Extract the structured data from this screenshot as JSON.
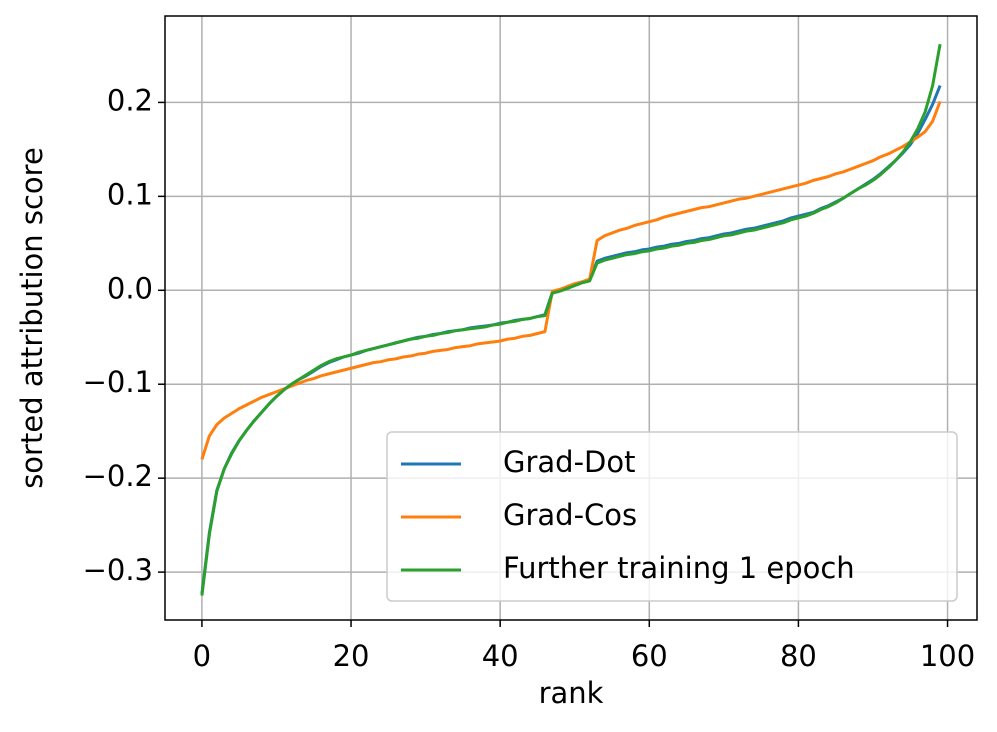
{
  "chart_data": {
    "type": "line",
    "xlabel": "rank",
    "ylabel": "sorted attribution score",
    "x": [
      0,
      1,
      2,
      3,
      4,
      5,
      6,
      7,
      8,
      9,
      10,
      11,
      12,
      13,
      14,
      15,
      16,
      17,
      18,
      19,
      20,
      21,
      22,
      23,
      24,
      25,
      26,
      27,
      28,
      29,
      30,
      31,
      32,
      33,
      34,
      35,
      36,
      37,
      38,
      39,
      40,
      41,
      42,
      43,
      44,
      45,
      46,
      47,
      48,
      49,
      50,
      51,
      52,
      53,
      54,
      55,
      56,
      57,
      58,
      59,
      60,
      61,
      62,
      63,
      64,
      65,
      66,
      67,
      68,
      69,
      70,
      71,
      72,
      73,
      74,
      75,
      76,
      77,
      78,
      79,
      80,
      81,
      82,
      83,
      84,
      85,
      86,
      87,
      88,
      89,
      90,
      91,
      92,
      93,
      94,
      95,
      96,
      97,
      98,
      99
    ],
    "series": [
      {
        "name": "Grad-Dot",
        "color": "#1f77b4",
        "values": [
          -0.323,
          -0.258,
          -0.213,
          -0.19,
          -0.173,
          -0.16,
          -0.149,
          -0.139,
          -0.13,
          -0.121,
          -0.113,
          -0.106,
          -0.1,
          -0.095,
          -0.091,
          -0.086,
          -0.081,
          -0.077,
          -0.074,
          -0.071,
          -0.069,
          -0.067,
          -0.064,
          -0.062,
          -0.06,
          -0.058,
          -0.056,
          -0.054,
          -0.052,
          -0.05,
          -0.049,
          -0.047,
          -0.046,
          -0.044,
          -0.043,
          -0.042,
          -0.04,
          -0.039,
          -0.038,
          -0.037,
          -0.035,
          -0.034,
          -0.032,
          -0.031,
          -0.03,
          -0.028,
          -0.026,
          -0.002,
          0.0,
          0.003,
          0.006,
          0.009,
          0.011,
          0.031,
          0.034,
          0.036,
          0.038,
          0.04,
          0.041,
          0.043,
          0.044,
          0.046,
          0.047,
          0.049,
          0.05,
          0.052,
          0.053,
          0.055,
          0.056,
          0.058,
          0.06,
          0.061,
          0.063,
          0.065,
          0.066,
          0.068,
          0.07,
          0.072,
          0.074,
          0.077,
          0.079,
          0.081,
          0.083,
          0.087,
          0.09,
          0.094,
          0.098,
          0.103,
          0.108,
          0.113,
          0.118,
          0.124,
          0.131,
          0.138,
          0.146,
          0.155,
          0.167,
          0.182,
          0.198,
          0.218
        ]
      },
      {
        "name": "Grad-Cos",
        "color": "#ff7f0e",
        "values": [
          -0.18,
          -0.155,
          -0.143,
          -0.136,
          -0.131,
          -0.126,
          -0.122,
          -0.118,
          -0.114,
          -0.111,
          -0.108,
          -0.105,
          -0.102,
          -0.099,
          -0.096,
          -0.094,
          -0.091,
          -0.089,
          -0.087,
          -0.085,
          -0.083,
          -0.081,
          -0.079,
          -0.077,
          -0.076,
          -0.074,
          -0.073,
          -0.071,
          -0.07,
          -0.068,
          -0.067,
          -0.065,
          -0.064,
          -0.063,
          -0.061,
          -0.06,
          -0.059,
          -0.057,
          -0.056,
          -0.055,
          -0.054,
          -0.052,
          -0.051,
          -0.049,
          -0.048,
          -0.046,
          -0.044,
          -0.001,
          0.001,
          0.004,
          0.007,
          0.009,
          0.012,
          0.053,
          0.058,
          0.061,
          0.064,
          0.066,
          0.069,
          0.071,
          0.073,
          0.075,
          0.078,
          0.08,
          0.082,
          0.084,
          0.086,
          0.088,
          0.089,
          0.091,
          0.093,
          0.095,
          0.097,
          0.098,
          0.1,
          0.102,
          0.104,
          0.106,
          0.108,
          0.11,
          0.112,
          0.114,
          0.117,
          0.119,
          0.121,
          0.124,
          0.126,
          0.129,
          0.132,
          0.135,
          0.138,
          0.142,
          0.145,
          0.149,
          0.153,
          0.158,
          0.163,
          0.169,
          0.18,
          0.201
        ]
      },
      {
        "name": "Further training 1 epoch",
        "color": "#2ca02c",
        "values": [
          -0.325,
          -0.26,
          -0.214,
          -0.19,
          -0.174,
          -0.16,
          -0.149,
          -0.139,
          -0.13,
          -0.121,
          -0.113,
          -0.106,
          -0.1,
          -0.095,
          -0.09,
          -0.085,
          -0.08,
          -0.076,
          -0.073,
          -0.071,
          -0.069,
          -0.066,
          -0.064,
          -0.062,
          -0.06,
          -0.058,
          -0.056,
          -0.054,
          -0.052,
          -0.051,
          -0.049,
          -0.048,
          -0.046,
          -0.045,
          -0.043,
          -0.042,
          -0.041,
          -0.04,
          -0.039,
          -0.037,
          -0.036,
          -0.034,
          -0.033,
          -0.031,
          -0.03,
          -0.028,
          -0.027,
          -0.003,
          -0.001,
          0.002,
          0.005,
          0.008,
          0.01,
          0.029,
          0.032,
          0.034,
          0.036,
          0.038,
          0.039,
          0.041,
          0.042,
          0.044,
          0.045,
          0.047,
          0.048,
          0.05,
          0.051,
          0.053,
          0.054,
          0.056,
          0.058,
          0.059,
          0.061,
          0.063,
          0.064,
          0.066,
          0.068,
          0.07,
          0.072,
          0.075,
          0.077,
          0.079,
          0.082,
          0.086,
          0.089,
          0.093,
          0.098,
          0.103,
          0.108,
          0.112,
          0.117,
          0.123,
          0.13,
          0.138,
          0.147,
          0.158,
          0.172,
          0.19,
          0.218,
          0.262
        ]
      }
    ],
    "xlim": [
      -4.95,
      103.95
    ],
    "ylim": [
      -0.351,
      0.292
    ],
    "xticks": [
      0,
      20,
      40,
      60,
      80,
      100
    ],
    "yticks": [
      {
        "value": -0.3,
        "label": "−0.3"
      },
      {
        "value": -0.2,
        "label": "−0.2"
      },
      {
        "value": -0.1,
        "label": "−0.1"
      },
      {
        "value": 0,
        "label": "0.0"
      },
      0.1,
      0.2
    ],
    "grid": true,
    "legend": "lower right"
  }
}
